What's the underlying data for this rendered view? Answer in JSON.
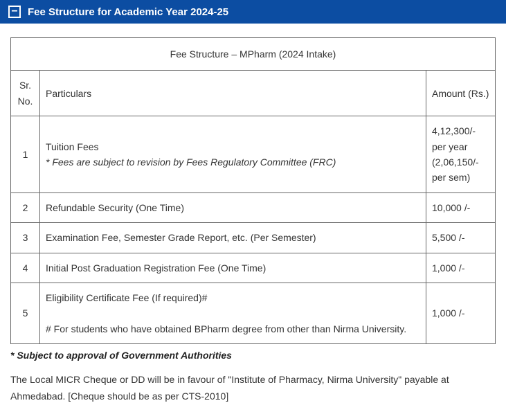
{
  "header": {
    "title": "Fee Structure for Academic Year 2024-25",
    "collapse_symbol": "−"
  },
  "table": {
    "title": "Fee Structure – MPharm (2024 Intake)",
    "columns": {
      "sr": "Sr. No.",
      "particulars": "Particulars",
      "amount": "Amount (Rs.)"
    },
    "rows": [
      {
        "sr": "1",
        "particulars_main": "Tuition Fees",
        "particulars_note": "* Fees are subject to revision by Fees Regulatory Committee (FRC)",
        "amount": "4,12,300/- per year (2,06,150/- per sem)"
      },
      {
        "sr": "2",
        "particulars_main": "Refundable Security (One Time)",
        "amount": "10,000 /-"
      },
      {
        "sr": "3",
        "particulars_main": "Examination Fee, Semester Grade Report, etc. (Per Semester)",
        "amount": "5,500 /-"
      },
      {
        "sr": "4",
        "particulars_main": "Initial Post Graduation Registration Fee (One Time)",
        "amount": "1,000 /-"
      },
      {
        "sr": "5",
        "particulars_main": "Eligibility Certificate Fee (If required)#",
        "particulars_note": "# For students who have obtained BPharm degree from other than Nirma University.",
        "amount": "1,000 /-"
      }
    ]
  },
  "approval_note": "* Subject to approval of Government Authorities",
  "footer_text": "The Local MICR Cheque or DD will be in favour of \"Institute of Pharmacy, Nirma University\" payable at Ahmedabad. [Cheque should be as per CTS-2010]"
}
